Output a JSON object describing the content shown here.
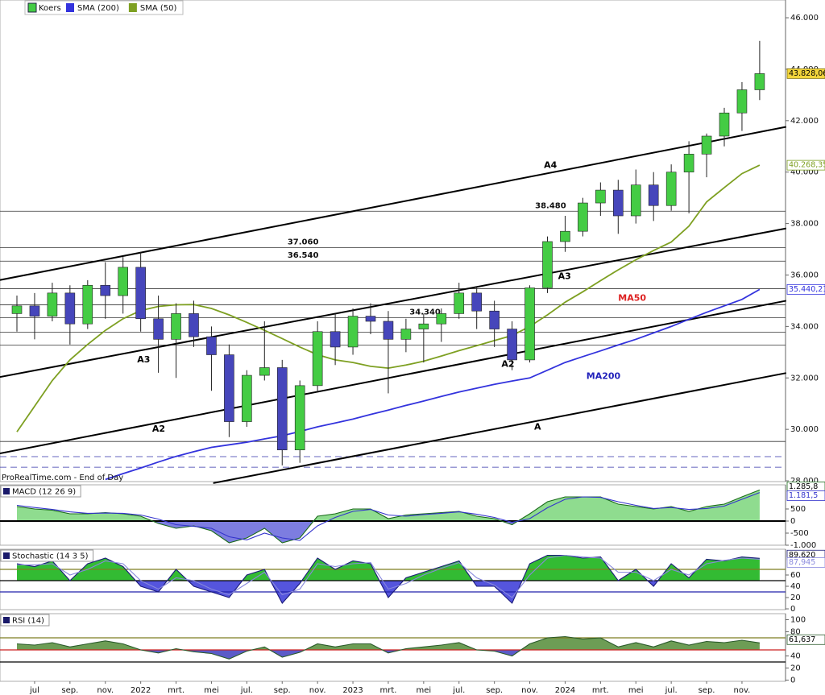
{
  "chart_data": [
    {
      "type": "candlestick",
      "name": "Koers",
      "up_color": "#44cc44",
      "down_color": "#4646bb",
      "categories": [
        null,
        "jul",
        null,
        "sep.",
        null,
        "nov.",
        null,
        "2022",
        null,
        "mrt.",
        null,
        "mei",
        null,
        "jul.",
        null,
        "sep.",
        null,
        "nov.",
        null,
        "2023",
        null,
        "mrt.",
        null,
        "mei",
        null,
        "jul.",
        null,
        "sep.",
        null,
        "nov.",
        null,
        "2024",
        null,
        "mrt.",
        null,
        "mei",
        null,
        "jul.",
        null,
        "sep.",
        null,
        "nov.",
        null
      ],
      "open": [
        34500,
        34800,
        34400,
        35300,
        34100,
        35600,
        35200,
        36300,
        34300,
        33500,
        34500,
        33600,
        32900,
        30300,
        32100,
        32400,
        29200,
        31700,
        33800,
        33200,
        34400,
        34200,
        33500,
        33900,
        34100,
        34500,
        35300,
        34600,
        33900,
        32700,
        35500,
        37300,
        37700,
        38800,
        39300,
        38300,
        39500,
        38700,
        40000,
        40700,
        41400,
        42300,
        43200
      ],
      "high": [
        35200,
        35300,
        35700,
        35600,
        35800,
        36500,
        36700,
        36900,
        35200,
        34900,
        35000,
        34000,
        33300,
        32300,
        34200,
        32700,
        31900,
        34200,
        34500,
        34700,
        34900,
        34600,
        34300,
        34500,
        34700,
        35700,
        35500,
        35000,
        34200,
        35600,
        37500,
        38300,
        39000,
        39600,
        39700,
        40100,
        40000,
        40300,
        41200,
        41500,
        42500,
        43500,
        45100
      ],
      "low": [
        33800,
        33500,
        34200,
        33300,
        33900,
        34300,
        34500,
        33800,
        32200,
        32000,
        33200,
        31500,
        29700,
        30100,
        31900,
        28600,
        28700,
        31500,
        32500,
        32900,
        33700,
        31400,
        33000,
        32600,
        33400,
        34300,
        33900,
        33200,
        32300,
        32600,
        35300,
        36900,
        37500,
        38300,
        37600,
        38000,
        38100,
        38500,
        38400,
        39800,
        41000,
        41600,
        42800
      ],
      "close": [
        34800,
        34400,
        35300,
        34100,
        35600,
        35200,
        36300,
        34300,
        33500,
        34500,
        33600,
        32900,
        30300,
        32100,
        32400,
        29200,
        31700,
        33800,
        33200,
        34400,
        34200,
        33500,
        33900,
        34100,
        34500,
        35300,
        34600,
        33900,
        32700,
        35500,
        37300,
        37700,
        38800,
        39300,
        38300,
        39500,
        38700,
        40000,
        40700,
        41400,
        42300,
        43200,
        43828.06
      ],
      "last_label": "43.828,06",
      "series": [
        {
          "name": "SMA (200)",
          "color": "#3333dd",
          "last_label": "35.440,21",
          "values": [
            null,
            null,
            null,
            null,
            null,
            28050,
            28280,
            28500,
            28730,
            28950,
            29130,
            29300,
            29400,
            29500,
            29630,
            29750,
            29920,
            30100,
            30250,
            30400,
            30580,
            30750,
            30930,
            31100,
            31280,
            31450,
            31600,
            31750,
            31880,
            32000,
            32300,
            32600,
            32830,
            33050,
            33280,
            33500,
            33750,
            34000,
            34280,
            34550,
            34800,
            35050,
            35440.21
          ]
        },
        {
          "name": "SMA (50)",
          "color": "#7ea022",
          "last_label": "40.268,35",
          "values": [
            29900,
            30900,
            31900,
            32700,
            33300,
            33850,
            34300,
            34620,
            34780,
            34840,
            34850,
            34700,
            34450,
            34160,
            33850,
            33530,
            33200,
            32900,
            32700,
            32600,
            32450,
            32380,
            32500,
            32650,
            32850,
            33060,
            33250,
            33450,
            33650,
            34000,
            34450,
            34940,
            35350,
            35780,
            36200,
            36590,
            36950,
            37280,
            37900,
            38840,
            39400,
            39940,
            40268.35
          ]
        }
      ],
      "ylim": [
        27970,
        46690
      ],
      "yticks": [
        {
          "value": 28000,
          "label": "28.000"
        },
        {
          "value": 30000,
          "label": "30.000"
        },
        {
          "value": 32000,
          "label": "32.000"
        },
        {
          "value": 34000,
          "label": "34.000"
        },
        {
          "value": 36000,
          "label": "36.000"
        },
        {
          "value": 38000,
          "label": "38.000"
        },
        {
          "value": 40000,
          "label": "40.000"
        },
        {
          "value": 42000,
          "label": "42.000"
        },
        {
          "value": 44000,
          "label": "44.000"
        },
        {
          "value": 46000,
          "label": "46.000"
        }
      ],
      "trendlines": [
        {
          "points": [
            [
              -1,
              35800
            ],
            [
              43.5,
              41760
            ]
          ]
        },
        {
          "points": [
            [
              -1,
              32030
            ],
            [
              43.5,
              37810
            ]
          ]
        },
        {
          "points": [
            [
              -1,
              29060
            ],
            [
              43.5,
              35000
            ]
          ]
        },
        {
          "points": [
            [
              11.1,
              27910
            ],
            [
              43.5,
              32190
            ]
          ]
        }
      ],
      "hlines": [
        {
          "value": 38480,
          "label": "38.480",
          "label_x": 29.3
        },
        {
          "value": 37060,
          "label": "37.060",
          "label_x": 15.3
        },
        {
          "value": 36540,
          "label": "36.540",
          "label_x": 15.3
        },
        {
          "value": 35470
        },
        {
          "value": 34840
        },
        {
          "value": 34340,
          "label": "34.340",
          "label_x": 22.2
        },
        {
          "value": 33780
        },
        {
          "value": 33280
        },
        {
          "value": 29530
        },
        {
          "value": 28940,
          "dashed": true
        },
        {
          "value": 28530,
          "dashed": true
        }
      ],
      "annotations": [
        {
          "text": "A4",
          "x": 29.8,
          "y": 40250,
          "color": "#000000"
        },
        {
          "text": "A3",
          "x": 6.8,
          "y": 32690,
          "color": "#000000"
        },
        {
          "text": "A3",
          "x": 30.6,
          "y": 35940,
          "color": "#000000"
        },
        {
          "text": "A2",
          "x": 7.65,
          "y": 30000,
          "color": "#000000"
        },
        {
          "text": "A2",
          "x": 27.4,
          "y": 32530,
          "color": "#000000"
        },
        {
          "text": "A",
          "x": 29.25,
          "y": 30090,
          "color": "#000000"
        },
        {
          "text": "MA50",
          "x": 34.0,
          "y": 35090,
          "color": "#dd2222"
        },
        {
          "text": "MA200",
          "x": 32.2,
          "y": 32060,
          "color": "#2222bb"
        }
      ],
      "footer": "ProRealTime.com - End of Day"
    },
    {
      "type": "macd",
      "title": "MACD (12 26 9)",
      "series": [
        {
          "color": "#1a6a1a",
          "fill": "#8fdc8f",
          "fill_below": "#7d7de0",
          "last_label": "1.285,8",
          "values": [
            600,
            500,
            450,
            300,
            300,
            350,
            300,
            200,
            -100,
            -300,
            -200,
            -400,
            -900,
            -700,
            -300,
            -900,
            -700,
            200,
            300,
            500,
            500,
            100,
            250,
            300,
            350,
            400,
            200,
            100,
            -150,
            300,
            800,
            1000,
            1000,
            1000,
            700,
            600,
            500,
            600,
            400,
            600,
            700,
            1000,
            1285.8
          ]
        },
        {
          "color": "#3333cc",
          "last_label": "1.181,5",
          "values": [
            650,
            560,
            480,
            380,
            320,
            330,
            320,
            250,
            80,
            -150,
            -220,
            -300,
            -650,
            -780,
            -500,
            -700,
            -800,
            -200,
            150,
            400,
            480,
            250,
            200,
            270,
            320,
            380,
            280,
            150,
            -50,
            100,
            550,
            900,
            1000,
            980,
            800,
            650,
            520,
            560,
            480,
            520,
            620,
            900,
            1181.5
          ]
        }
      ],
      "levels": [
        {
          "value": 0,
          "color": "#000000",
          "fill_base": true
        }
      ],
      "ylim": [
        -1000,
        1500
      ],
      "yticks": [
        500,
        0,
        -500,
        {
          "value": -1000,
          "label": "-1.000"
        }
      ]
    },
    {
      "type": "oscillator",
      "title": "Stochastic (14 3 5)",
      "series": [
        {
          "color": "#1a1a7a",
          "fill": "#33bb33",
          "fill_below": "#5555dd",
          "last_label": "89,620",
          "values": [
            80,
            75,
            85,
            50,
            80,
            90,
            75,
            40,
            30,
            70,
            40,
            30,
            20,
            60,
            70,
            10,
            45,
            90,
            70,
            85,
            80,
            20,
            55,
            65,
            75,
            85,
            40,
            40,
            10,
            80,
            95,
            95,
            90,
            92,
            50,
            70,
            40,
            80,
            55,
            88,
            85,
            92,
            89.62
          ]
        },
        {
          "color": "#8888dd",
          "last_label": "87,945",
          "values": [
            78,
            78,
            80,
            60,
            70,
            85,
            80,
            50,
            35,
            55,
            50,
            35,
            25,
            45,
            65,
            25,
            35,
            80,
            75,
            80,
            82,
            35,
            45,
            60,
            72,
            82,
            55,
            42,
            20,
            60,
            90,
            95,
            92,
            90,
            65,
            65,
            50,
            70,
            60,
            80,
            86,
            90,
            87.945
          ]
        }
      ],
      "levels": [
        {
          "value": 70,
          "color": "#7e7e22"
        },
        {
          "value": 50,
          "color": "#000000",
          "fill_base": true
        },
        {
          "value": 30,
          "color": "#2222aa"
        }
      ],
      "ylim": [
        -1.4,
        105.7
      ],
      "yticks": [
        60,
        40,
        20,
        0
      ]
    },
    {
      "type": "oscillator",
      "title": "RSI (14)",
      "series": [
        {
          "color": "#2a5a2a",
          "fill": "#6d9d55",
          "fill_below": "#5b5bc8",
          "last_label": "61,637",
          "values": [
            60,
            58,
            62,
            55,
            60,
            65,
            60,
            50,
            45,
            52,
            47,
            44,
            35,
            48,
            55,
            38,
            46,
            60,
            55,
            60,
            60,
            45,
            52,
            55,
            58,
            62,
            50,
            48,
            40,
            60,
            70,
            72,
            68,
            70,
            55,
            62,
            55,
            65,
            58,
            64,
            62,
            66,
            61.637
          ]
        }
      ],
      "levels": [
        {
          "value": 70,
          "color": "#7e7e22"
        },
        {
          "value": 50,
          "color": "#cc2222",
          "fill_base": true
        },
        {
          "value": 30,
          "color": "#000000"
        }
      ],
      "ylim": [
        -2,
        110
      ],
      "yticks": [
        100,
        80,
        40,
        20,
        0
      ]
    }
  ]
}
